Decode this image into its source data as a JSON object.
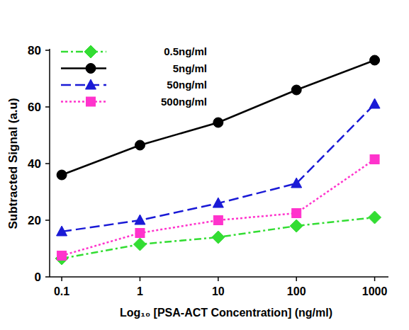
{
  "chart_data": {
    "type": "line",
    "x_label": "Log₁₀ [PSA-ACT Concentration] (ng/ml)",
    "y_label": "Subtracted Signal (a.u)",
    "x": [
      0.1,
      1,
      10,
      100,
      1000
    ],
    "series": [
      {
        "name": "0.5ng/ml",
        "color": "#33dd33",
        "marker": "diamond",
        "line_style": "dashdot",
        "values": [
          6.5,
          11.5,
          14,
          18,
          21
        ]
      },
      {
        "name": "5ng/ml",
        "color": "#000000",
        "marker": "circle",
        "line_style": "solid",
        "values": [
          36,
          46.5,
          54.5,
          66,
          76.5
        ]
      },
      {
        "name": "50ng/ml",
        "color": "#1a1ad6",
        "marker": "triangle",
        "line_style": "dashed",
        "values": [
          16,
          20,
          26,
          33,
          61
        ]
      },
      {
        "name": "500ng/ml",
        "color": "#ff33cc",
        "marker": "square",
        "line_style": "dotted",
        "values": [
          7.5,
          15.5,
          20,
          22.5,
          41.5
        ]
      }
    ],
    "xlim": [
      0.07,
      1500
    ],
    "xticks": [
      0.1,
      1,
      10,
      100,
      1000
    ],
    "ylim": [
      0,
      80
    ],
    "yticks": [
      0,
      20,
      40,
      60,
      80
    ],
    "log": "x",
    "grid": false,
    "legend": "upper left"
  }
}
